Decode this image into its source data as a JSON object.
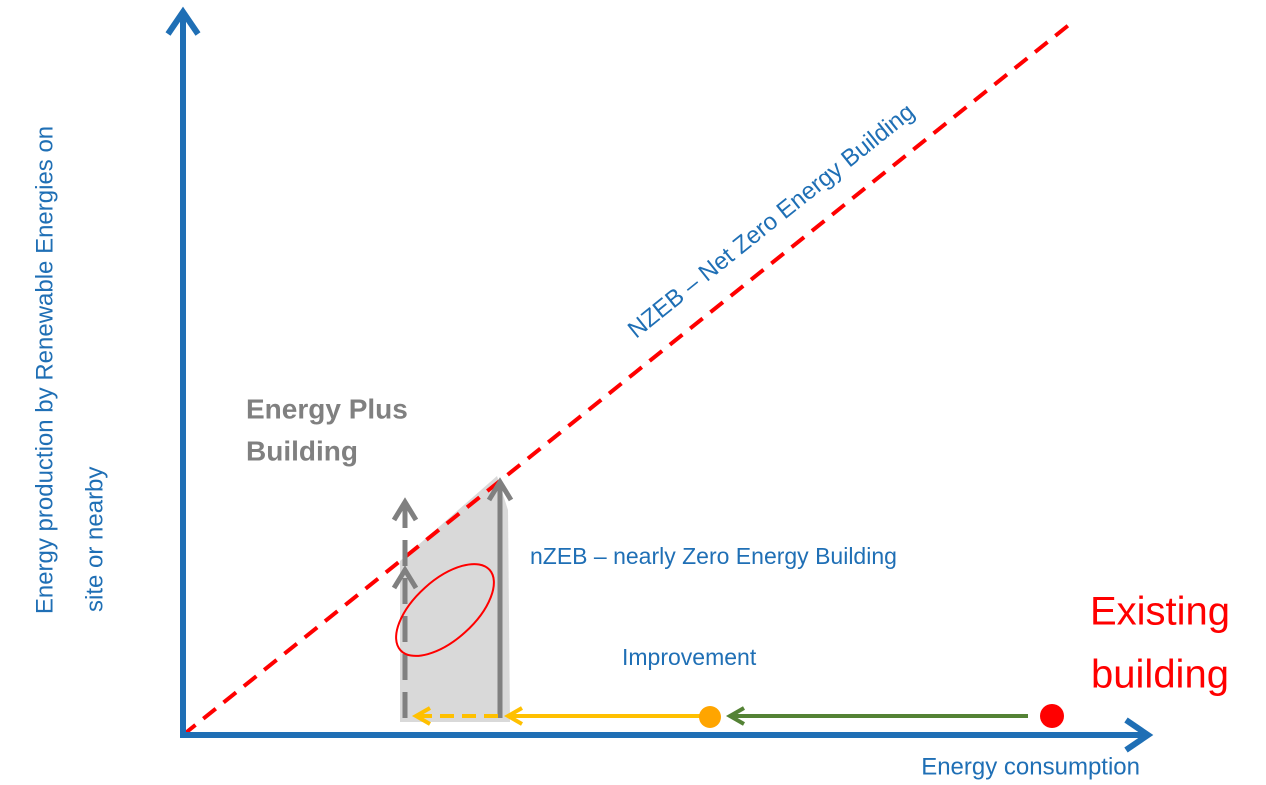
{
  "axes": {
    "y_label": [
      "Energy production by Renewable Energies on",
      "site or nearby"
    ],
    "x_label": "Energy consumption"
  },
  "labels": {
    "nzeb_line": "NZEB – Net Zero Energy Building",
    "nearly_zero": "nZEB – nearly Zero Energy Building",
    "energy_plus": [
      "Energy Plus",
      "Building"
    ],
    "improvement": "Improvement",
    "existing": [
      "Existing",
      "building"
    ]
  }
}
